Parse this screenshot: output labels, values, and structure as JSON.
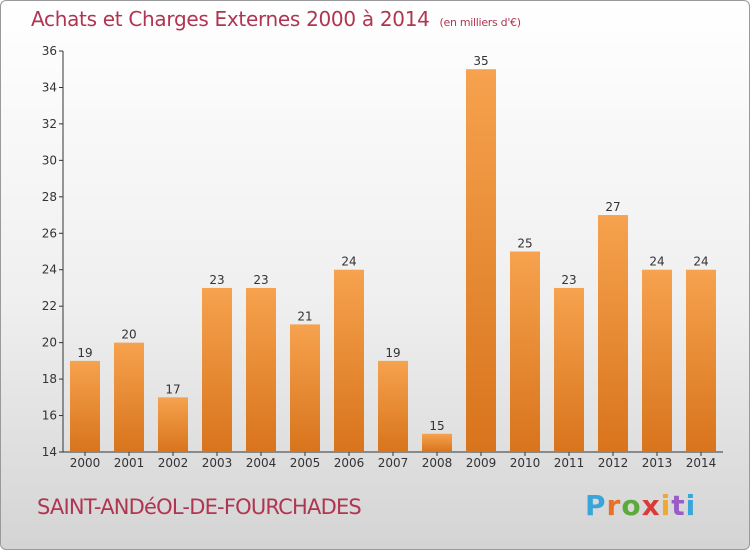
{
  "header": {
    "title": "Achats et Charges Externes 2000 à 2014",
    "unit": "(en milliers d'€)"
  },
  "footer": {
    "commune": "SAINT-ANDéOL-DE-FOURCHADES",
    "brand": "Proxiti"
  },
  "colors": {
    "title": "#b03550",
    "bar_top": "#f6a24e",
    "bar_bottom": "#d8741c"
  },
  "chart_data": {
    "type": "bar",
    "title": "Achats et Charges Externes 2000 à 2014",
    "subtitle": "(en milliers d'€)",
    "xlabel": "",
    "ylabel": "",
    "categories": [
      "2000",
      "2001",
      "2002",
      "2003",
      "2004",
      "2005",
      "2006",
      "2007",
      "2008",
      "2009",
      "2010",
      "2011",
      "2012",
      "2013",
      "2014"
    ],
    "values": [
      19,
      20,
      17,
      23,
      23,
      21,
      24,
      19,
      15,
      35,
      25,
      23,
      27,
      24,
      24
    ],
    "ylim": [
      14,
      36
    ],
    "yticks": [
      14,
      16,
      18,
      20,
      22,
      24,
      26,
      28,
      30,
      32,
      34,
      36
    ],
    "grid": false,
    "legend": "none",
    "data_labels": true
  }
}
